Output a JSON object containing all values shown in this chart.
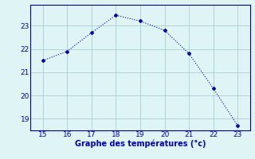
{
  "x": [
    15,
    16,
    17,
    18,
    19,
    20,
    21,
    22,
    23
  ],
  "y": [
    21.5,
    21.9,
    22.7,
    23.45,
    23.2,
    22.8,
    21.8,
    20.3,
    18.7
  ],
  "line_color": "#0000bb",
  "marker": "D",
  "marker_size": 2.0,
  "background_color": "#dff5f5",
  "grid_color": "#aacece",
  "xlabel": "Graphe des températures (°c)",
  "xlabel_color": "#0000bb",
  "xlabel_fontsize": 7,
  "tick_color": "#0000bb",
  "tick_fontsize": 6.5,
  "xlim": [
    14.5,
    23.5
  ],
  "ylim": [
    18.5,
    23.9
  ],
  "yticks": [
    19,
    20,
    21,
    22,
    23
  ],
  "xticks": [
    15,
    16,
    17,
    18,
    19,
    20,
    21,
    22,
    23
  ],
  "spine_color": "#0000aa",
  "line_width": 0.8
}
